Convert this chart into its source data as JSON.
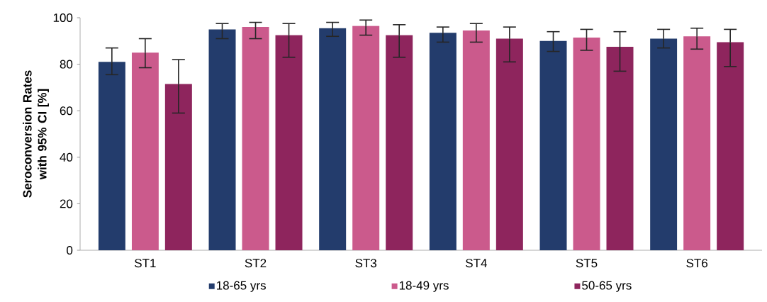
{
  "chart_data": {
    "type": "bar",
    "ylabel": "Seroconversion Rates with 95% CI [%]",
    "categories": [
      "ST1",
      "ST2",
      "ST3",
      "ST4",
      "ST5",
      "ST6"
    ],
    "series": [
      {
        "name": "18-65 yrs",
        "color": "#233c6c",
        "values": [
          81,
          95,
          95.5,
          93.5,
          90,
          91
        ],
        "errors": [
          [
            75.5,
            87
          ],
          [
            91,
            97.5
          ],
          [
            92,
            98
          ],
          [
            89.5,
            96
          ],
          [
            85.5,
            94
          ],
          [
            87,
            95
          ]
        ]
      },
      {
        "name": "18-49 yrs",
        "color": "#cb5a8c",
        "values": [
          85,
          96,
          96.5,
          94.5,
          91.5,
          92
        ],
        "errors": [
          [
            78.5,
            91
          ],
          [
            91,
            98
          ],
          [
            92.5,
            99
          ],
          [
            89.5,
            97.5
          ],
          [
            86,
            95
          ],
          [
            86.5,
            95.5
          ]
        ]
      },
      {
        "name": "50-65 yrs",
        "color": "#8e255d",
        "values": [
          71.5,
          92.5,
          92.5,
          91,
          87.5,
          89.5
        ],
        "errors": [
          [
            59,
            82
          ],
          [
            83,
            97.5
          ],
          [
            83,
            97
          ],
          [
            81,
            96
          ],
          [
            77,
            94
          ],
          [
            79,
            95
          ]
        ]
      }
    ],
    "ylim": [
      0,
      100
    ],
    "yticks": [
      0,
      20,
      40,
      60,
      80,
      100
    ],
    "legend": "bottom"
  }
}
